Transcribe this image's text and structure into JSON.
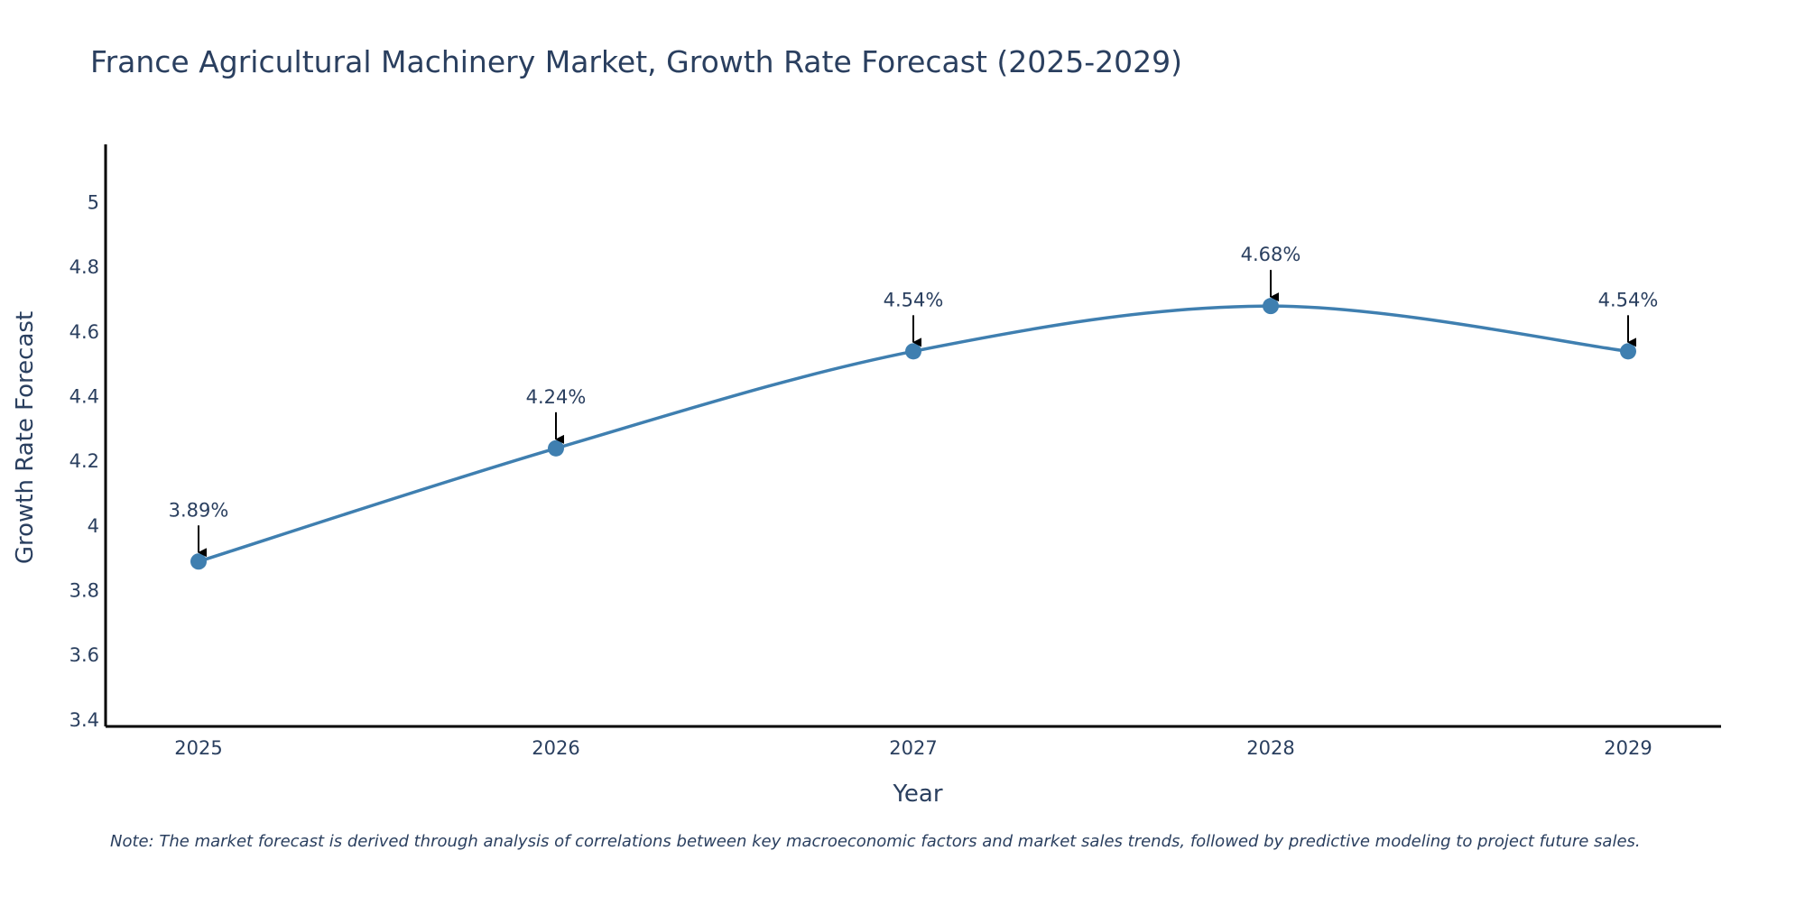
{
  "chart_data": {
    "type": "line",
    "title": "France Agricultural Machinery Market, Growth Rate Forecast (2025-2029)",
    "xlabel": "Year",
    "ylabel": "Growth Rate Forecast",
    "categories": [
      "2025",
      "2026",
      "2027",
      "2028",
      "2029"
    ],
    "series": [
      {
        "name": "Growth Rate Forecast",
        "values": [
          3.89,
          4.24,
          4.54,
          4.68,
          4.54
        ],
        "labels": [
          "3.89%",
          "4.24%",
          "4.54%",
          "4.68%",
          "4.54%"
        ]
      }
    ],
    "ylim": [
      3.38,
      5.18
    ],
    "yticks": [
      3.4,
      3.6,
      3.8,
      4,
      4.2,
      4.4,
      4.6,
      4.8,
      5
    ],
    "ytick_labels": [
      "3.4",
      "3.6",
      "3.8",
      "4",
      "4.2",
      "4.4",
      "4.6",
      "4.8",
      "5"
    ],
    "line_shape": "spline",
    "legend": "none",
    "grid": false,
    "note": "Note: The market forecast is derived through analysis of correlations between key macroeconomic factors and market sales trends, followed by predictive modeling to project future sales.",
    "colors": {
      "line": "#3f7fb0",
      "marker": "#3f7fb0",
      "axis": "#000000",
      "arrow": "#000000",
      "text": "#2a3f5f"
    }
  }
}
